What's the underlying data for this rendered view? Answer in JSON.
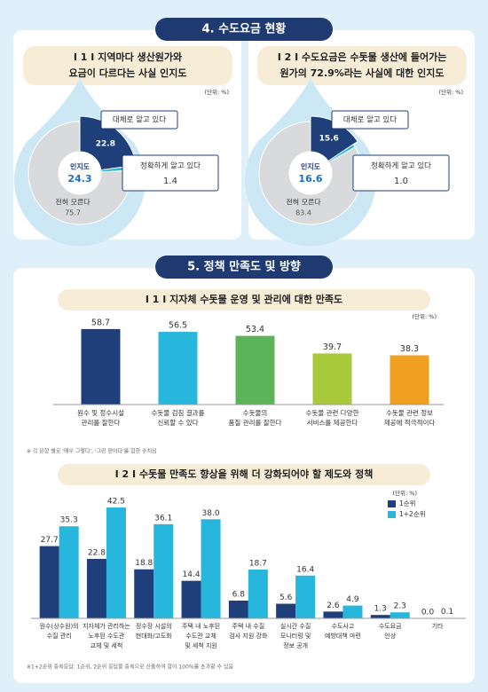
{
  "sections": [
    {
      "title": "4. 수도요금 현황"
    },
    {
      "title": "5. 정책 만족도 및 방향"
    }
  ],
  "chart_data": [
    {
      "type": "donut",
      "title": [
        "I 1 I 지역마다 생산원가와",
        "요금이 다르다는 사실 인지도"
      ],
      "unit": "(단위: %)",
      "categories": [
        "대체로 알고 있다",
        "정확하게 알고 있다",
        "전혀 모른다"
      ],
      "values": [
        22.8,
        1.4,
        75.7
      ],
      "colors": [
        "#1f3f7a",
        "#27b6dc",
        "#d9dadb"
      ],
      "center_label": "인지도",
      "center_value": 24.3
    },
    {
      "type": "donut",
      "title": [
        "I 2 I 수도요금은 수돗물 생산에 들어가는",
        "원가의 72.9%라는 사실에 대한 인지도"
      ],
      "unit": "(단위: %)",
      "categories": [
        "대체로 알고 있다",
        "정확하게 알고 있다",
        "전혀 모른다"
      ],
      "values": [
        15.6,
        1.0,
        83.4
      ],
      "value_labels": [
        "15.6",
        "1.0",
        "83.4"
      ],
      "colors": [
        "#1f3f7a",
        "#27b6dc",
        "#d9dadb"
      ],
      "center_label": "인지도",
      "center_value": 16.6
    },
    {
      "type": "bar",
      "title": "I 1 I  지자체 수돗물 운영 및 관리에 대한 만족도",
      "unit": "(단위: %)",
      "categories": [
        [
          "원수 및 정수시설",
          "관리를 잘한다"
        ],
        [
          "수돗물 검침 결과를",
          "신뢰할 수 있다"
        ],
        [
          "수돗물의",
          "품질 관리를 잘한다"
        ],
        [
          "수돗물 관련 다양한",
          "서비스를 제공한다"
        ],
        [
          "수돗물 관련 정보",
          "제공에 적극적이다"
        ]
      ],
      "values": [
        58.7,
        56.5,
        53.4,
        39.7,
        38.3
      ],
      "colors": [
        "#1f3f7a",
        "#27b6dc",
        "#5cb35a",
        "#a8c93a",
        "#f0a020"
      ],
      "note": "※ 각 문항 별로 '매우 그렇다', '그런 편이다'를 합한 수치임"
    },
    {
      "type": "grouped-bar",
      "title": "I 2 I  수돗물 만족도 향상을 위해 더 강화되어야 할 제도와 정책",
      "unit": "(단위: %)",
      "categories": [
        [
          "원수(상수원)의",
          "수질 관리"
        ],
        [
          "지자체가 관리하는",
          "노후된 수도관",
          "교체 및 세척"
        ],
        [
          "정수장 시설의",
          "현대화/고도화"
        ],
        [
          "주택 내 노후된",
          "수도관 교체",
          "및 세척 지원"
        ],
        [
          "주택 내 수질",
          "검사 지원 강화"
        ],
        [
          "실시간 수질",
          "모니터링 및",
          "정보 공개"
        ],
        [
          "수도사고",
          "예방대책 마련"
        ],
        [
          "수도요금",
          "인상"
        ],
        [
          "기타"
        ]
      ],
      "series": [
        {
          "name": "1순위",
          "color": "#1f3f7a",
          "values": [
            27.7,
            22.8,
            18.8,
            14.4,
            6.8,
            5.6,
            2.6,
            1.3,
            0.0
          ],
          "value_labels": [
            "27.7",
            "22.8",
            "18.8",
            "14.4",
            "6.8",
            "5.6",
            "2.6",
            "1.3",
            "0.0"
          ]
        },
        {
          "name": "1+2순위",
          "color": "#27b6dc",
          "values": [
            35.3,
            42.5,
            36.1,
            38.0,
            18.7,
            16.4,
            4.9,
            2.3,
            0.1
          ],
          "value_labels": [
            "35.3",
            "42.5",
            "36.1",
            "38.0",
            "18.7",
            "16.4",
            "4.9",
            "2.3",
            "0.1"
          ]
        }
      ],
      "note": "※1+2순위 중복응답: 1순위, 2순위 응답을 중복으로 산출하여 합이 100%를 초과할 수 있음"
    }
  ]
}
